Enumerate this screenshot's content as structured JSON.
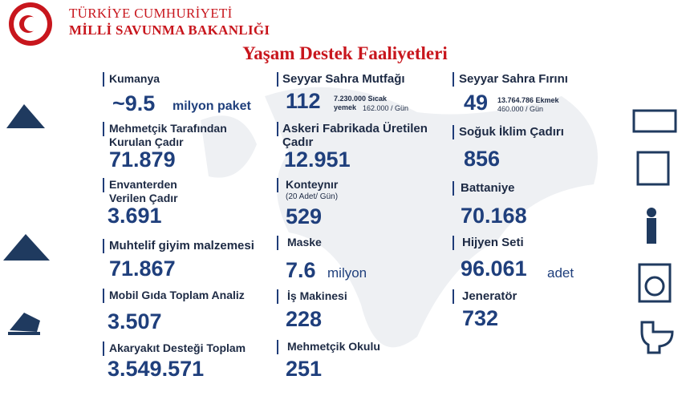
{
  "header": {
    "org_line1": "TÜRKİYE CUMHURİYETİ",
    "org_line2": "MİLLİ SAVUNMA BAKANLIĞI",
    "title": "Yaşam Destek Faaliyetleri"
  },
  "items": [
    {
      "label": "Kumanya",
      "value": "~9.5",
      "unit": "milyon paket"
    },
    {
      "label": "Mehmetçik Tarafından Kurulan Çadır",
      "value": "71.879"
    },
    {
      "label": "Envanterden Verilen Çadır",
      "value": "3.691"
    },
    {
      "label": "Muhtelif giyim malzemesi",
      "value": "71.867"
    },
    {
      "label": "Mobil Gıda Toplam Analiz",
      "value": "3.507"
    },
    {
      "label": "Akaryakıt Desteği Toplam",
      "value": "3.549.571"
    },
    {
      "label": "Seyyar Sahra Mutfağı",
      "value": "112",
      "note": "7.230.000 Sıcak yemek",
      "rate": "162.000 / Gün"
    },
    {
      "label": "Askeri Fabrikada Üretilen Çadır",
      "value": "12.951"
    },
    {
      "label": "Konteynır",
      "sub": "(20 Adet/ Gün)",
      "value": "529"
    },
    {
      "label": "Maske",
      "value": "7.6",
      "unit": "milyon"
    },
    {
      "label": "İş Makinesi",
      "value": "228"
    },
    {
      "label": "Mehmetçik Okulu",
      "value": "251"
    },
    {
      "label": "Seyyar Sahra Fırını",
      "value": "49",
      "note": "13.764.786 Ekmek",
      "rate": "460.000 / Gün"
    },
    {
      "label": "Soğuk İklim Çadırı",
      "value": "856"
    },
    {
      "label": "Battaniye",
      "value": "70.168"
    },
    {
      "label": "Hijyen Seti",
      "value": "96.061",
      "unit": "adet"
    },
    {
      "label": "Jeneratör",
      "value": "732"
    }
  ]
}
